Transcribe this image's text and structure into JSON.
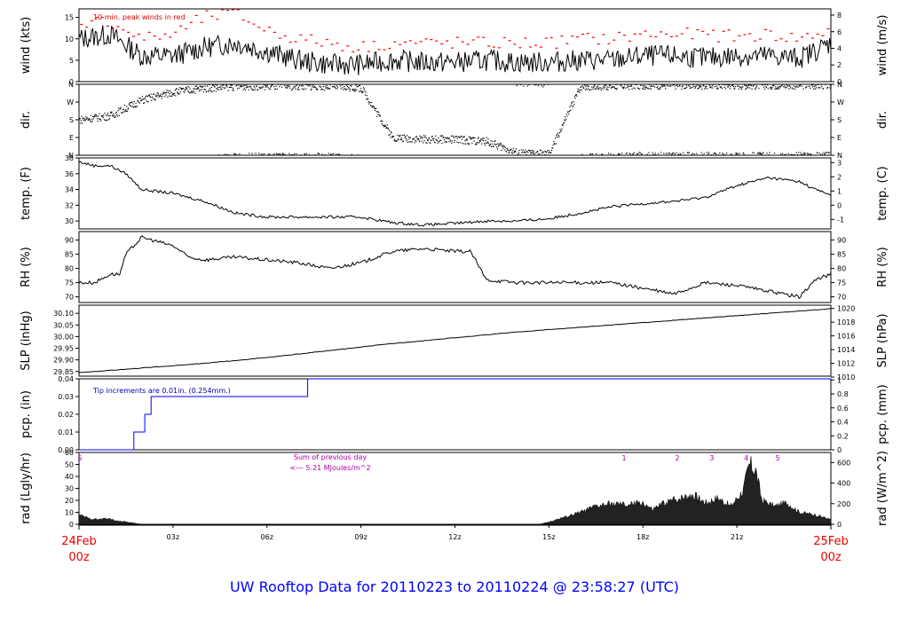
{
  "footer": {
    "title": "UW Rooftop Data for 20110223  to  20110224 @ 23:58:27  (UTC)",
    "start_date": "24Feb",
    "start_time": "00z",
    "end_date": "25Feb",
    "end_time": "00z"
  },
  "colors": {
    "trace": "#000000",
    "peak": "#ff0000",
    "precip": "#0000ff",
    "annot": "#aa00aa",
    "fill": "#222222"
  },
  "chart_data": {
    "type": "line",
    "x_axis": {
      "unit": "hours UTC",
      "range": [
        0,
        24
      ],
      "ticks": [
        "03z",
        "06z",
        "09z",
        "12z",
        "15z",
        "18z",
        "21z"
      ],
      "tick_hours": [
        3,
        6,
        9,
        12,
        15,
        18,
        21
      ]
    },
    "panels": [
      {
        "id": "wind",
        "ylabel_left": "wind (kts)",
        "ylabel_right": "wind (m/s)",
        "ylim": [
          0,
          17
        ],
        "left_ticks": [
          "0",
          "5",
          "10",
          "15"
        ],
        "left_values": [
          0,
          5,
          10,
          15
        ],
        "right_ticks": [
          "0",
          "2",
          "4",
          "6",
          "8"
        ],
        "right_values_kts": [
          0,
          3.89,
          7.78,
          11.66,
          15.55
        ],
        "annotation": "10 min. peak winds in red",
        "series": [
          {
            "name": "wind",
            "x": [
              0,
              1,
              2,
              3,
              4,
              5,
              6,
              7,
              8,
              9,
              10,
              11,
              12,
              13,
              14,
              15,
              16,
              17,
              18,
              19,
              20,
              21,
              22,
              23,
              24
            ],
            "values": [
              10,
              11,
              6,
              6,
              8,
              9,
              7,
              5,
              4,
              4,
              5,
              4.5,
              4.5,
              5,
              4.5,
              4.5,
              5,
              5,
              6,
              6,
              5.5,
              6,
              6,
              5.5,
              9
            ]
          },
          {
            "name": "10 min. peak winds",
            "x": [
              0,
              1,
              2,
              3,
              4,
              5,
              6,
              7,
              8,
              9,
              10,
              11,
              12,
              13,
              14,
              15,
              16,
              17,
              18,
              19,
              20,
              21,
              22,
              23,
              24
            ],
            "values": [
              14,
              14,
              10,
              11,
              15,
              16,
              12,
              10,
              9,
              8,
              9,
              9,
              9,
              9,
              9,
              9,
              10,
              10,
              11,
              11,
              11,
              10.5,
              11,
              10,
              12
            ]
          }
        ]
      },
      {
        "id": "dir",
        "ylabel_left": "dir.",
        "ylabel_right": "dir.",
        "ylim": [
          0,
          360
        ],
        "left_ticks": [
          "N",
          "E",
          "S",
          "W",
          "N"
        ],
        "left_values": [
          0,
          90,
          180,
          270,
          360
        ],
        "right_ticks": [
          "N",
          "E",
          "S",
          "W",
          "N"
        ],
        "series": [
          {
            "name": "direction",
            "x": [
              0,
              0.5,
              1,
              1.5,
              2,
              3,
              4,
              5,
              6,
              7,
              8,
              9,
              10,
              11,
              12,
              13,
              14,
              15,
              16,
              17,
              18,
              19,
              20,
              21,
              22,
              23,
              24
            ],
            "values": [
              180,
              190,
              200,
              240,
              280,
              320,
              340,
              350,
              350,
              350,
              350,
              340,
              90,
              80,
              80,
              70,
              10,
              5,
              350,
              350,
              355,
              355,
              355,
              355,
              355,
              355,
              355
            ]
          }
        ]
      },
      {
        "id": "temp",
        "ylabel_left": "temp. (F)",
        "ylabel_right": "temp. (C)",
        "ylim": [
          29,
          38
        ],
        "left_ticks": [
          "30",
          "32",
          "34",
          "36",
          "38"
        ],
        "left_values": [
          30,
          32,
          34,
          36,
          38
        ],
        "right_ticks": [
          "-1",
          "0",
          "1",
          "2",
          "3"
        ],
        "right_values_f": [
          30.2,
          32,
          33.8,
          35.6,
          37.4
        ],
        "series": [
          {
            "name": "temperature",
            "x": [
              0,
              0.5,
              1,
              1.5,
              2,
              3,
              4,
              5,
              6,
              7,
              8,
              9,
              10,
              11,
              12,
              13,
              14,
              15,
              16,
              17,
              18,
              19,
              20,
              21,
              22,
              23,
              23.5,
              24
            ],
            "values": [
              37.5,
              37,
              37,
              36,
              34,
              33.5,
              32.5,
              31,
              30.5,
              30.5,
              30.5,
              30.5,
              29.8,
              29.5,
              29.7,
              30,
              30,
              30.3,
              31,
              31.8,
              32.2,
              32.5,
              33,
              34.5,
              35.5,
              35,
              34,
              33.3
            ]
          }
        ]
      },
      {
        "id": "rh",
        "ylabel_left": "RH (%)",
        "ylabel_right": "RH (%)",
        "ylim": [
          68,
          93
        ],
        "left_ticks": [
          "70",
          "75",
          "80",
          "85",
          "90"
        ],
        "left_values": [
          70,
          75,
          80,
          85,
          90
        ],
        "right_ticks": [
          "70",
          "75",
          "80",
          "85",
          "90"
        ],
        "series": [
          {
            "name": "relative humidity",
            "x": [
              0,
              0.5,
              1,
              1.3,
              1.5,
              2,
              3,
              3.5,
              4,
              5,
              6,
              7,
              8,
              9,
              10,
              11,
              12,
              12.5,
              13,
              14,
              15,
              16,
              17,
              18,
              19,
              20,
              21,
              22,
              23,
              23.5,
              24
            ],
            "values": [
              75,
              75,
              78,
              78,
              85,
              91,
              88,
              84,
              83,
              84,
              83,
              82,
              80,
              82,
              86,
              87,
              86,
              86,
              76,
              75,
              75,
              75,
              75,
              73,
              71,
              75,
              74,
              72,
              70,
              76,
              78
            ]
          }
        ]
      },
      {
        "id": "slp",
        "ylabel_left": "SLP (inHg)",
        "ylabel_right": "SLP (hPa)",
        "ylim": [
          29.83,
          30.135
        ],
        "left_ticks": [
          "29.85",
          "29.90",
          "29.95",
          "30.00",
          "30.05",
          "30.10"
        ],
        "left_values": [
          29.85,
          29.9,
          29.95,
          30.0,
          30.05,
          30.1
        ],
        "right_ticks": [
          "1010",
          "1012",
          "1014",
          "1016",
          "1018",
          "1020"
        ],
        "right_values_inhg": [
          29.826,
          29.885,
          29.944,
          30.003,
          30.062,
          30.121
        ],
        "series": [
          {
            "name": "sea level pressure",
            "x": [
              0,
              2,
              4,
              6,
              8,
              10,
              12,
              14,
              16,
              18,
              20,
              22,
              24
            ],
            "values": [
              29.845,
              29.865,
              29.885,
              29.91,
              29.94,
              29.97,
              29.995,
              30.02,
              30.04,
              30.06,
              30.08,
              30.1,
              30.12
            ]
          }
        ]
      },
      {
        "id": "pcp",
        "ylabel_left": "pcp. (in)",
        "ylabel_right": "pcp. (mm)",
        "ylim": [
          0,
          0.04
        ],
        "left_ticks": [
          "0.00",
          "0.01",
          "0.02",
          "0.03",
          "0.04"
        ],
        "left_values": [
          0,
          0.01,
          0.02,
          0.03,
          0.04
        ],
        "right_ticks": [
          "0",
          "0.2",
          "0.4",
          "0.6",
          "0.8",
          "1"
        ],
        "right_values_in": [
          0,
          0.00787,
          0.01575,
          0.02362,
          0.0315,
          0.03937
        ],
        "annotation": "Tip increments are 0.01in. (0.254mm.)",
        "series": [
          {
            "name": "precipitation",
            "step": true,
            "x": [
              0,
              1.75,
              2.1,
              2.3,
              7.3,
              24
            ],
            "values": [
              0,
              0.01,
              0.02,
              0.03,
              0.04,
              0.04
            ]
          }
        ]
      },
      {
        "id": "rad",
        "ylabel_left": "rad (Lgly/hr)",
        "ylabel_right": "rad (W/m^2)",
        "ylim": [
          0,
          60
        ],
        "left_ticks": [
          "0",
          "10",
          "20",
          "30",
          "40",
          "50",
          "60"
        ],
        "left_values": [
          0,
          10,
          20,
          30,
          40,
          50,
          60
        ],
        "right_ticks": [
          "0",
          "200",
          "400",
          "600"
        ],
        "right_values_lgly": [
          0,
          17.2,
          34.4,
          51.6
        ],
        "annotation_line1": "Sum of previous day",
        "annotation_line2": "<--- 5.21 MJoules/m^2",
        "day_marker": "5",
        "hour_labels": [
          {
            "text": "1",
            "hour": 17.4
          },
          {
            "text": "2",
            "hour": 19.1
          },
          {
            "text": "3",
            "hour": 20.2
          },
          {
            "text": "4",
            "hour": 21.3
          },
          {
            "text": "5",
            "hour": 22.3
          }
        ],
        "series": [
          {
            "name": "solar radiation",
            "fill": true,
            "x": [
              0,
              0.3,
              0.6,
              0.9,
              1.2,
              1.5,
              2,
              14.7,
              15,
              16,
              16.5,
              17,
              17.5,
              18,
              18.3,
              18.7,
              19.2,
              19.6,
              20,
              20.4,
              20.8,
              21.2,
              21.4,
              21.6,
              21.8,
              22.2,
              22.6,
              23,
              23.5,
              24
            ],
            "values": [
              8,
              5,
              4,
              5,
              3,
              2,
              0,
              0,
              2,
              10,
              15,
              17,
              16,
              18,
              12,
              18,
              22,
              25,
              18,
              22,
              15,
              28,
              50,
              45,
              20,
              15,
              18,
              10,
              8,
              4
            ]
          }
        ]
      }
    ]
  }
}
